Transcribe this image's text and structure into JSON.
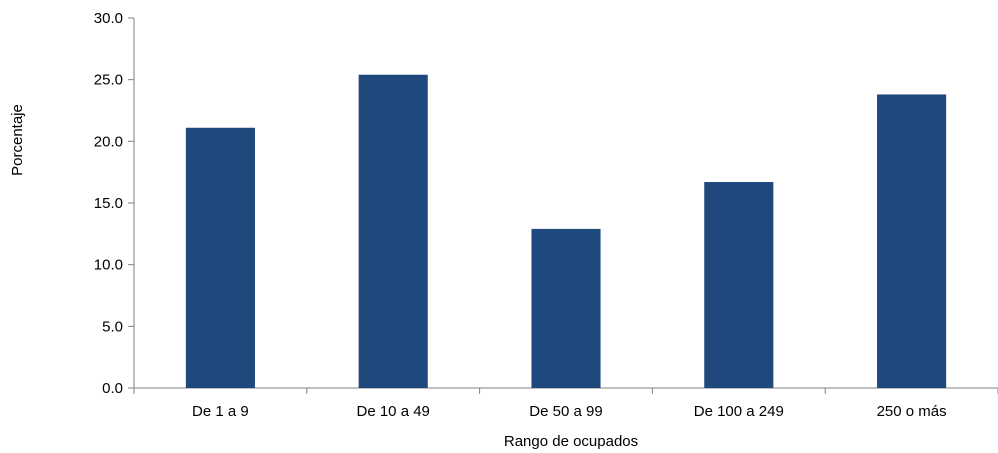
{
  "chart_data": {
    "type": "bar",
    "title": "",
    "xlabel": "Rango de ocupados",
    "ylabel": "Porcentaje",
    "categories": [
      "De 1 a 9",
      "De 10 a 49",
      "De 50 a 99",
      "De 100 a 249",
      "250 o más"
    ],
    "values": [
      21.1,
      25.4,
      12.9,
      16.7,
      23.8
    ],
    "ylim": [
      0,
      30
    ],
    "yticks": [
      "0.0",
      "5.0",
      "10.0",
      "15.0",
      "20.0",
      "25.0",
      "30.0"
    ],
    "ytick_values": [
      0,
      5,
      10,
      15,
      20,
      25,
      30
    ],
    "grid": false,
    "legend": "none",
    "bar_color": "#1f497d",
    "axis_color": "#808080"
  }
}
